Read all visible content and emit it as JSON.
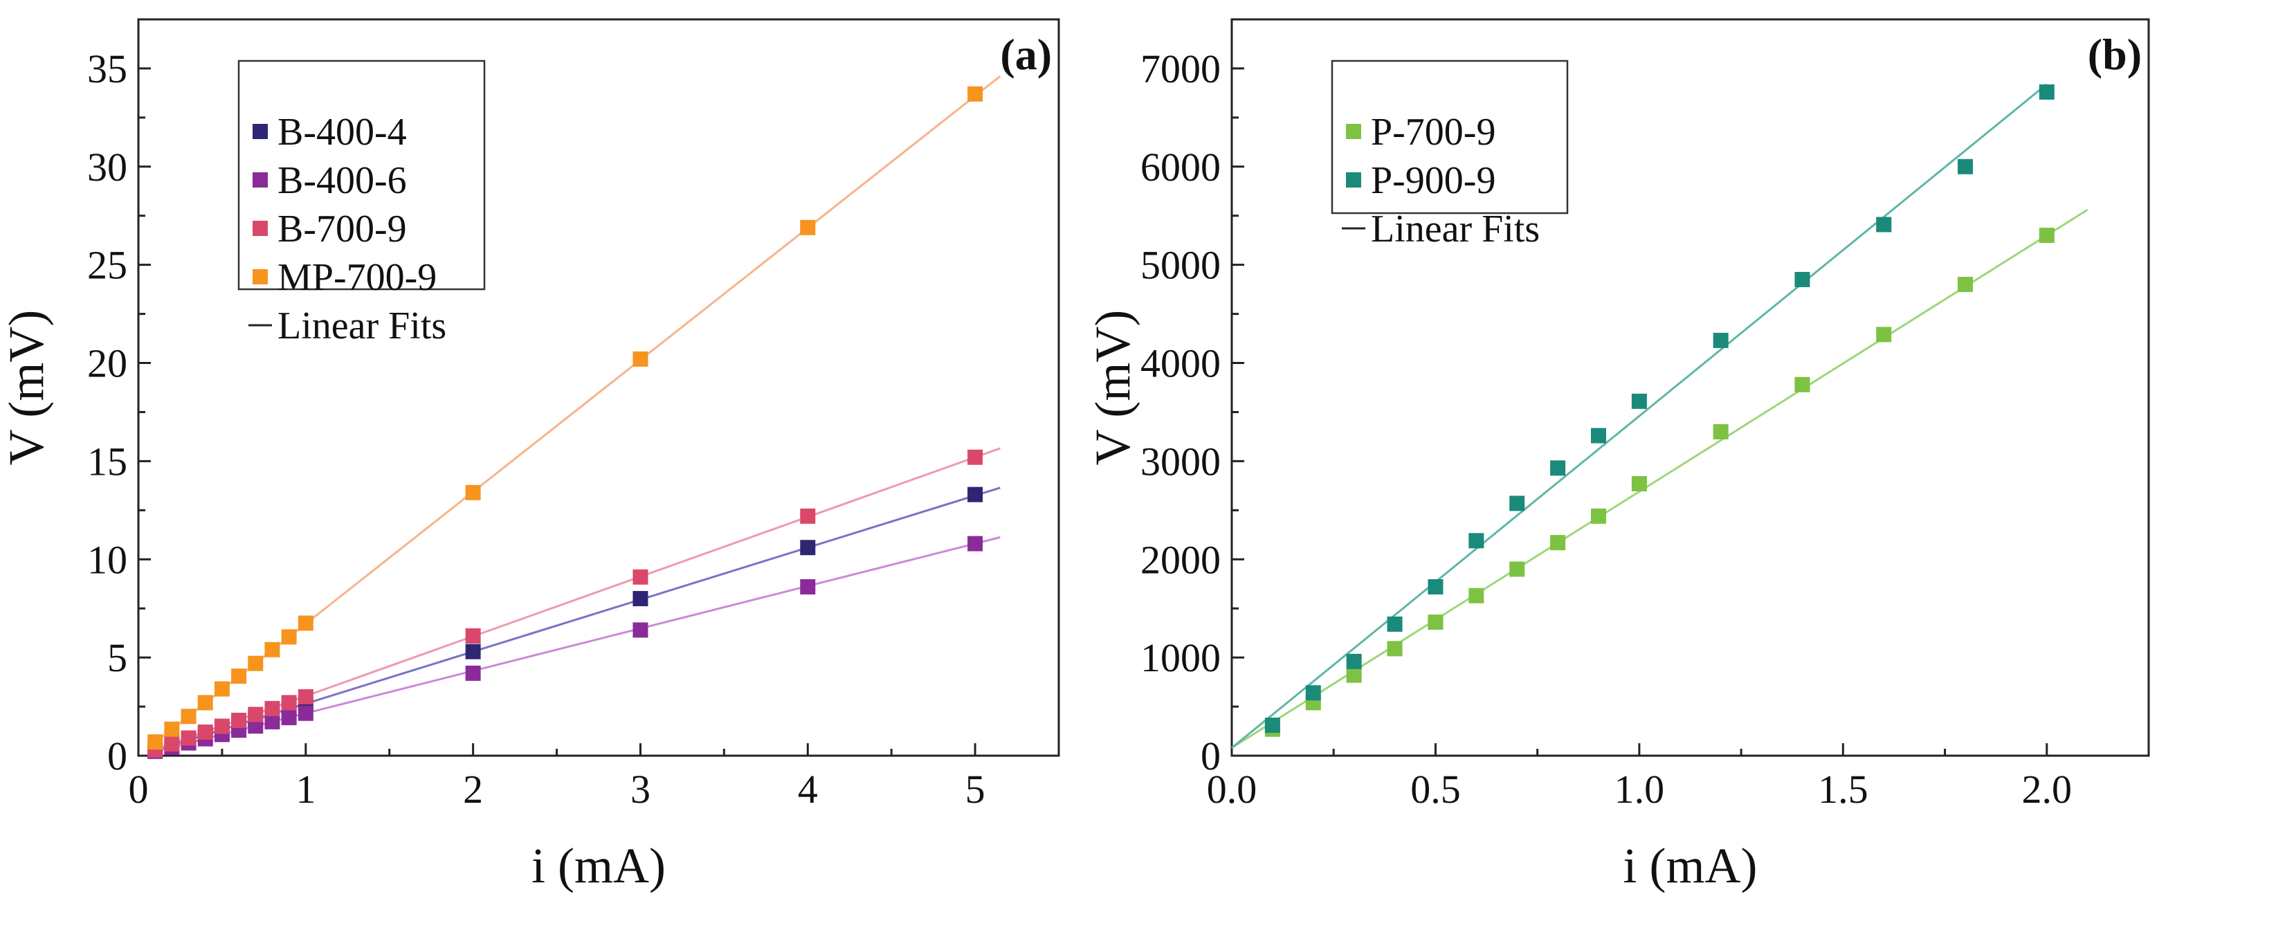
{
  "figure": {
    "panels": [
      "(a)",
      "(b)"
    ]
  },
  "legend_fit_label": "Linear Fits",
  "chart_data": [
    {
      "type": "scatter",
      "panel_label": "(a)",
      "xlabel": "i (mA)",
      "ylabel": "V (mV)",
      "xlim": [
        0,
        5.5
      ],
      "ylim": [
        0,
        37.5
      ],
      "xticks": [
        0,
        1,
        2,
        3,
        4,
        5
      ],
      "yticks": [
        0,
        5,
        10,
        15,
        20,
        25,
        30,
        35
      ],
      "legend": "top-left",
      "series": [
        {
          "name": "B-400-4",
          "color": "#2e2573",
          "fit_color": "#7a72c8",
          "fit_x": [
            0.1,
            5.15
          ],
          "slope": 2.65,
          "intercept": 0.0,
          "x": [
            0.1,
            0.2,
            0.3,
            0.4,
            0.5,
            0.6,
            0.7,
            0.8,
            0.9,
            1,
            2,
            3,
            4,
            5
          ],
          "y": [
            0.27,
            0.53,
            0.8,
            1.06,
            1.33,
            1.6,
            1.86,
            2.13,
            2.4,
            2.66,
            5.3,
            8.0,
            10.6,
            13.3
          ]
        },
        {
          "name": "B-400-6",
          "color": "#8b2b9a",
          "fit_color": "#c98ad6",
          "fit_x": [
            0.1,
            5.15
          ],
          "slope": 2.16,
          "intercept": 0.0,
          "x": [
            0.1,
            0.2,
            0.3,
            0.4,
            0.5,
            0.6,
            0.7,
            0.8,
            0.9,
            1,
            2,
            3,
            4,
            5
          ],
          "y": [
            0.22,
            0.43,
            0.65,
            0.86,
            1.08,
            1.3,
            1.51,
            1.73,
            1.94,
            2.16,
            4.2,
            6.4,
            8.6,
            10.8
          ]
        },
        {
          "name": "B-700-9",
          "color": "#d9486a",
          "fit_color": "#ee9aae",
          "fit_x": [
            0.1,
            5.15
          ],
          "slope": 3.04,
          "intercept": 0.0,
          "x": [
            0.1,
            0.2,
            0.3,
            0.4,
            0.5,
            0.6,
            0.7,
            0.8,
            0.9,
            1,
            2,
            3,
            4,
            5
          ],
          "y": [
            0.3,
            0.6,
            0.9,
            1.2,
            1.5,
            1.8,
            2.1,
            2.4,
            2.7,
            3.0,
            6.1,
            9.1,
            12.2,
            15.2
          ]
        },
        {
          "name": "MP-700-9",
          "color": "#f7941d",
          "fit_color": "#f6b48a",
          "fit_x": [
            0.1,
            5.15
          ],
          "slope": 6.72,
          "intercept": 0.0,
          "x": [
            0.1,
            0.2,
            0.3,
            0.4,
            0.5,
            0.6,
            0.7,
            0.8,
            0.9,
            1,
            2,
            3,
            4,
            5
          ],
          "y": [
            0.7,
            1.35,
            2.0,
            2.7,
            3.4,
            4.05,
            4.7,
            5.4,
            6.05,
            6.75,
            13.4,
            20.2,
            26.9,
            33.7
          ]
        }
      ]
    },
    {
      "type": "scatter",
      "panel_label": "(b)",
      "xlabel": "i (mA)",
      "ylabel": "V (mV)",
      "xlim": [
        0.0,
        2.25
      ],
      "ylim": [
        0,
        7500
      ],
      "xticks": [
        0.0,
        0.5,
        1.0,
        1.5,
        2.0
      ],
      "yticks": [
        0,
        1000,
        2000,
        3000,
        4000,
        5000,
        6000,
        7000
      ],
      "legend": "top-left",
      "series": [
        {
          "name": "P-700-9",
          "color": "#7dc242",
          "fit_color": "#9fd67a",
          "fit_x": [
            0.0,
            2.1
          ],
          "slope": 2610,
          "intercept": 80,
          "x": [
            0.1,
            0.2,
            0.3,
            0.4,
            0.5,
            0.6,
            0.7,
            0.8,
            0.9,
            1.0,
            1.2,
            1.4,
            1.6,
            1.8,
            2.0
          ],
          "y": [
            270,
            540,
            820,
            1090,
            1360,
            1630,
            1900,
            2170,
            2440,
            2770,
            3300,
            3780,
            4290,
            4800,
            5300
          ]
        },
        {
          "name": "P-900-9",
          "color": "#1a8a7a",
          "fit_color": "#5fb6a8",
          "fit_x": [
            0.0,
            2.0
          ],
          "slope": 3380,
          "intercept": 80,
          "x": [
            0.1,
            0.2,
            0.3,
            0.4,
            0.5,
            0.6,
            0.7,
            0.8,
            0.9,
            1.0,
            1.2,
            1.4,
            1.6,
            1.8,
            2.0
          ],
          "y": [
            310,
            640,
            960,
            1340,
            1720,
            2190,
            2570,
            2930,
            3260,
            3610,
            4230,
            4850,
            5410,
            6000,
            6760
          ]
        }
      ]
    }
  ]
}
